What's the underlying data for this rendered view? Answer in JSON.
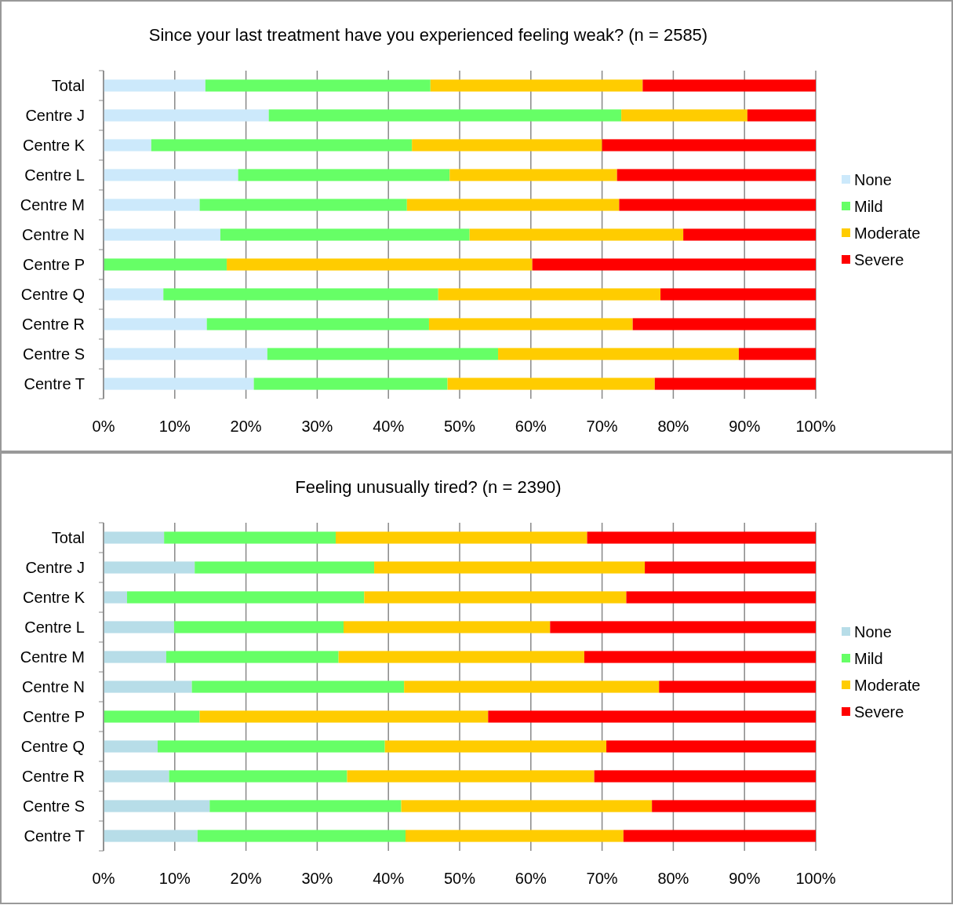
{
  "chart_data": [
    {
      "type": "bar",
      "orientation": "horizontal",
      "stacked": true,
      "title": "Since your last treatment have you experienced feeling weak? (n = 2585)",
      "categories": [
        "Total",
        "Centre J",
        "Centre K",
        "Centre L",
        "Centre M",
        "Centre N",
        "Centre P",
        "Centre Q",
        "Centre R",
        "Centre S",
        "Centre T"
      ],
      "series": [
        {
          "name": "None",
          "color": "#cce9fb",
          "values": [
            14.3,
            23.2,
            6.7,
            18.9,
            13.5,
            16.4,
            0,
            8.4,
            14.5,
            23.0,
            21.1
          ]
        },
        {
          "name": "Mild",
          "color": "#66ff66",
          "values": [
            31.6,
            49.5,
            36.6,
            29.7,
            29.1,
            35.0,
            17.3,
            38.6,
            31.2,
            32.4,
            27.2
          ]
        },
        {
          "name": "Moderate",
          "color": "#ffcc00",
          "values": [
            29.8,
            17.7,
            26.7,
            23.5,
            29.8,
            30.0,
            42.9,
            31.2,
            28.6,
            33.8,
            29.1
          ]
        },
        {
          "name": "Severe",
          "color": "#ff0000",
          "values": [
            24.3,
            9.6,
            30.0,
            27.9,
            27.6,
            18.6,
            39.8,
            21.8,
            25.7,
            10.8,
            22.6
          ]
        }
      ],
      "xlim": [
        0,
        100
      ],
      "xticks": [
        {
          "value": 0,
          "label": "0%"
        },
        {
          "value": 10,
          "label": "10%"
        },
        {
          "value": 20,
          "label": "20%"
        },
        {
          "value": 30,
          "label": "30%"
        },
        {
          "value": 40,
          "label": "40%"
        },
        {
          "value": 50,
          "label": "50%"
        },
        {
          "value": 60,
          "label": "60%"
        },
        {
          "value": 70,
          "label": "70%"
        },
        {
          "value": 80,
          "label": "80%"
        },
        {
          "value": 90,
          "label": "90%"
        },
        {
          "value": 100,
          "label": "100%"
        }
      ],
      "grid": "x",
      "legend": "right"
    },
    {
      "type": "bar",
      "orientation": "horizontal",
      "stacked": true,
      "title": "Feeling unusually tired? (n = 2390)",
      "categories": [
        "Total",
        "Centre J",
        "Centre K",
        "Centre L",
        "Centre M",
        "Centre N",
        "Centre P",
        "Centre Q",
        "Centre R",
        "Centre S",
        "Centre T"
      ],
      "series": [
        {
          "name": "None",
          "color": "#b7dde8",
          "values": [
            8.5,
            12.8,
            3.3,
            9.9,
            8.8,
            12.4,
            0,
            7.6,
            9.2,
            14.9,
            13.2
          ]
        },
        {
          "name": "Mild",
          "color": "#66ff66",
          "values": [
            24.1,
            25.2,
            33.3,
            23.8,
            24.2,
            29.8,
            13.5,
            31.9,
            25.0,
            26.9,
            29.2
          ]
        },
        {
          "name": "Moderate",
          "color": "#ffcc00",
          "values": [
            35.3,
            38.0,
            36.8,
            29.0,
            34.5,
            35.8,
            40.5,
            31.1,
            34.7,
            35.2,
            30.6
          ]
        },
        {
          "name": "Severe",
          "color": "#ff0000",
          "values": [
            32.1,
            24.0,
            26.6,
            37.3,
            32.5,
            22.0,
            46.0,
            29.4,
            31.1,
            23.0,
            27.0
          ]
        }
      ],
      "xlim": [
        0,
        100
      ],
      "xticks": [
        {
          "value": 0,
          "label": "0%"
        },
        {
          "value": 10,
          "label": "10%"
        },
        {
          "value": 20,
          "label": "20%"
        },
        {
          "value": 30,
          "label": "30%"
        },
        {
          "value": 40,
          "label": "40%"
        },
        {
          "value": 50,
          "label": "50%"
        },
        {
          "value": 60,
          "label": "60%"
        },
        {
          "value": 70,
          "label": "70%"
        },
        {
          "value": 80,
          "label": "80%"
        },
        {
          "value": 90,
          "label": "90%"
        },
        {
          "value": 100,
          "label": "100%"
        }
      ],
      "grid": "x",
      "legend": "right"
    }
  ]
}
